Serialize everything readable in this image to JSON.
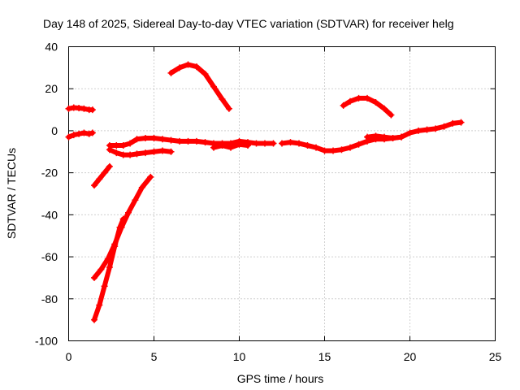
{
  "chart_data": {
    "type": "scatter",
    "title": "Day 148 of 2025, Sidereal Day-to-day VTEC variation (SDTVAR) for receiver helg",
    "xlabel": "GPS time / hours",
    "ylabel": "SDTVAR / TECUs",
    "xlim": [
      0,
      25
    ],
    "ylim": [
      -100,
      40
    ],
    "xticks": [
      0,
      5,
      10,
      15,
      20,
      25
    ],
    "yticks": [
      40,
      20,
      0,
      -20,
      -40,
      -60,
      -80,
      -100
    ],
    "grid": true,
    "legend": "none",
    "color": "#ff0000",
    "series": [
      {
        "points": [
          [
            0.0,
            -3
          ],
          [
            0.3,
            -2
          ],
          [
            0.6,
            -1.5
          ],
          [
            0.9,
            -1
          ],
          [
            1.2,
            -1.5
          ],
          [
            1.4,
            -1
          ]
        ]
      },
      {
        "points": [
          [
            0.0,
            10.5
          ],
          [
            0.3,
            11
          ],
          [
            0.6,
            10.8
          ],
          [
            0.9,
            10.5
          ],
          [
            1.2,
            10
          ],
          [
            1.4,
            10
          ]
        ]
      },
      {
        "points": [
          [
            1.5,
            -26
          ],
          [
            1.8,
            -23
          ],
          [
            2.1,
            -20
          ],
          [
            2.4,
            -17
          ]
        ]
      },
      {
        "points": [
          [
            1.5,
            -70
          ],
          [
            1.9,
            -66
          ],
          [
            2.3,
            -61
          ],
          [
            2.7,
            -54
          ],
          [
            3.1,
            -46
          ],
          [
            3.5,
            -39
          ],
          [
            3.9,
            -33
          ],
          [
            4.3,
            -27
          ],
          [
            4.8,
            -22
          ]
        ]
      },
      {
        "points": [
          [
            1.5,
            -90
          ],
          [
            1.8,
            -83
          ],
          [
            2.1,
            -74
          ],
          [
            2.4,
            -65
          ],
          [
            2.7,
            -55
          ],
          [
            3.0,
            -46
          ],
          [
            3.2,
            -42
          ]
        ]
      },
      {
        "points": [
          [
            2.4,
            -7
          ],
          [
            2.8,
            -7
          ],
          [
            3.2,
            -7
          ],
          [
            3.6,
            -6
          ],
          [
            4.0,
            -4
          ],
          [
            4.5,
            -3.5
          ],
          [
            5.0,
            -3.5
          ],
          [
            5.5,
            -4
          ],
          [
            6.0,
            -4.5
          ],
          [
            6.5,
            -5
          ],
          [
            7.0,
            -5
          ],
          [
            7.5,
            -5
          ],
          [
            8.0,
            -5.5
          ],
          [
            8.5,
            -6
          ],
          [
            9.0,
            -6
          ],
          [
            9.5,
            -6
          ],
          [
            10.0,
            -5
          ],
          [
            10.5,
            -5.5
          ],
          [
            11.0,
            -6
          ],
          [
            11.5,
            -6
          ],
          [
            12.0,
            -6
          ]
        ]
      },
      {
        "points": [
          [
            2.4,
            -9
          ],
          [
            2.8,
            -10.5
          ],
          [
            3.2,
            -11.5
          ],
          [
            3.6,
            -11.5
          ],
          [
            4.0,
            -11
          ],
          [
            4.5,
            -10.5
          ],
          [
            5.0,
            -10
          ],
          [
            5.5,
            -9.5
          ],
          [
            6.0,
            -10
          ]
        ]
      },
      {
        "points": [
          [
            8.5,
            -8
          ],
          [
            9.0,
            -7
          ],
          [
            9.5,
            -8
          ],
          [
            10.0,
            -6.5
          ],
          [
            10.5,
            -7
          ]
        ]
      },
      {
        "points": [
          [
            12.5,
            -6
          ],
          [
            13.0,
            -5.5
          ],
          [
            13.5,
            -6
          ],
          [
            14.0,
            -7
          ],
          [
            14.5,
            -8
          ],
          [
            15.0,
            -9.5
          ],
          [
            15.5,
            -9.5
          ],
          [
            16.0,
            -9
          ],
          [
            16.5,
            -8
          ],
          [
            17.0,
            -6.5
          ],
          [
            17.5,
            -5
          ],
          [
            18.0,
            -4
          ],
          [
            18.5,
            -4
          ],
          [
            19.0,
            -3.5
          ],
          [
            19.5,
            -3
          ],
          [
            20.0,
            -1
          ],
          [
            20.5,
            0
          ],
          [
            21.0,
            0.5
          ],
          [
            21.5,
            1
          ],
          [
            22.0,
            2
          ],
          [
            22.5,
            3.5
          ],
          [
            23.0,
            4
          ]
        ]
      },
      {
        "points": [
          [
            17.5,
            -3
          ],
          [
            18.0,
            -2.5
          ],
          [
            18.5,
            -3
          ],
          [
            19.0,
            -3.5
          ],
          [
            19.5,
            -3
          ]
        ]
      },
      {
        "points": [
          [
            6.0,
            27.5
          ],
          [
            6.5,
            30
          ],
          [
            7.0,
            31.5
          ],
          [
            7.5,
            30.5
          ],
          [
            8.0,
            27
          ],
          [
            8.5,
            21
          ],
          [
            9.0,
            15
          ],
          [
            9.4,
            10.5
          ]
        ]
      },
      {
        "points": [
          [
            16.1,
            12
          ],
          [
            16.5,
            14
          ],
          [
            17.0,
            15.5
          ],
          [
            17.5,
            15.5
          ],
          [
            18.0,
            13.5
          ],
          [
            18.5,
            10.5
          ],
          [
            18.9,
            7.5
          ]
        ]
      }
    ]
  }
}
